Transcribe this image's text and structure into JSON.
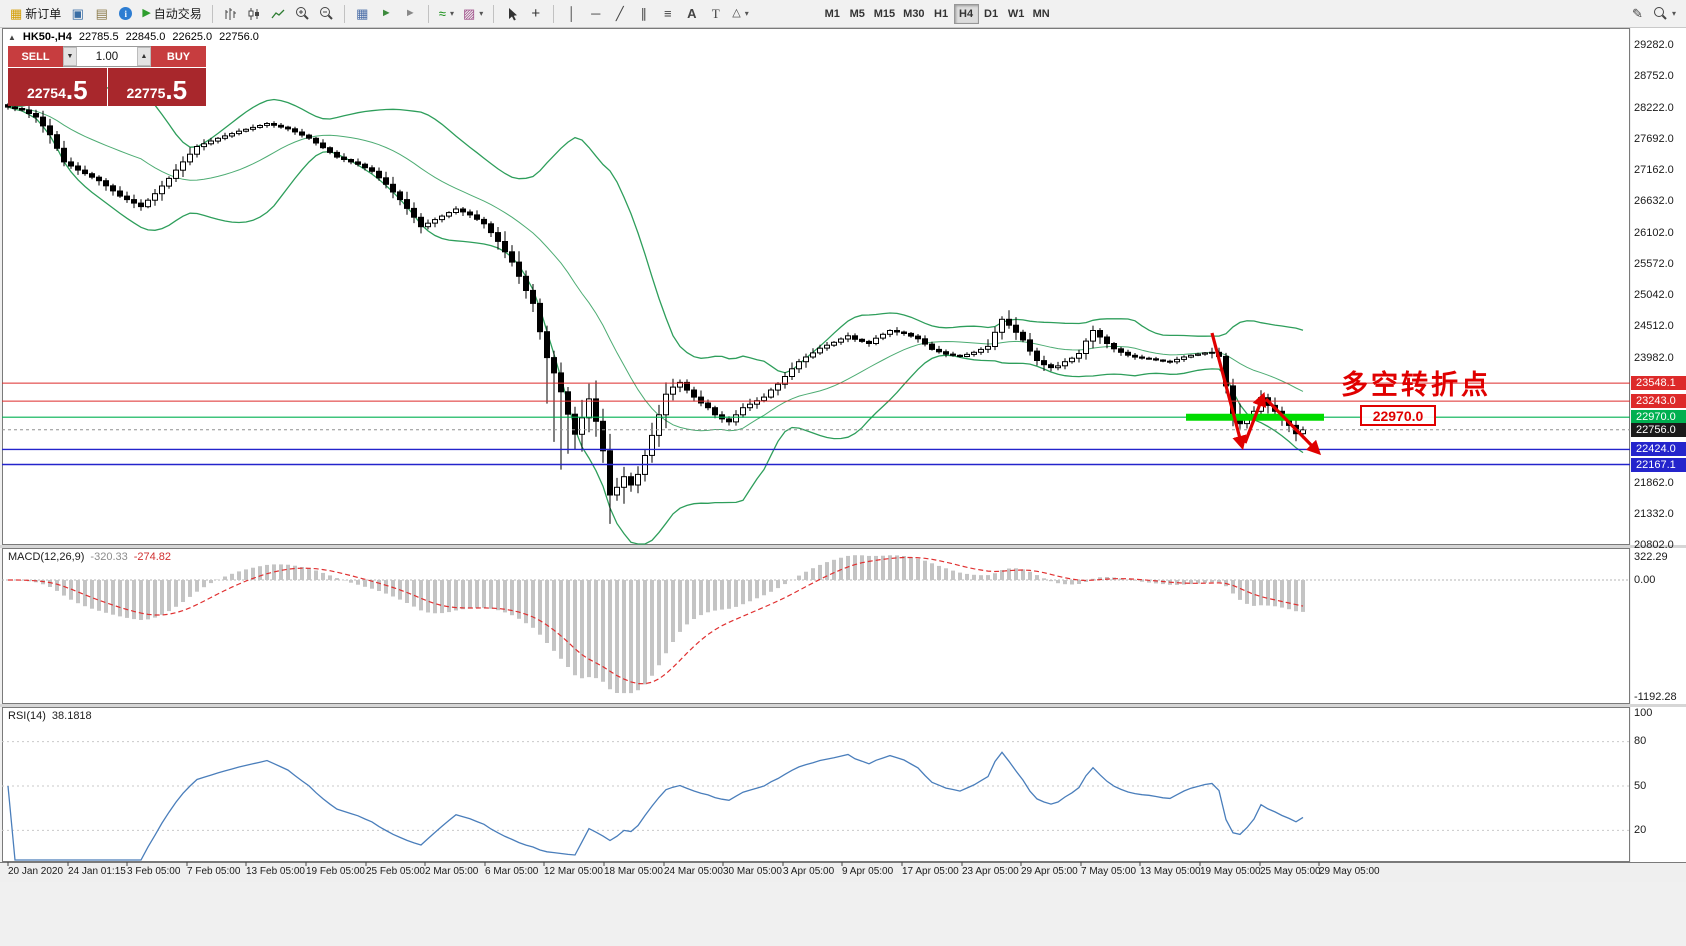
{
  "toolbar": {
    "new_order_label": "新订单",
    "autotrading_label": "自动交易",
    "timeframes": [
      "M1",
      "M5",
      "M15",
      "M30",
      "H1",
      "H4",
      "D1",
      "W1",
      "MN"
    ],
    "active_timeframe": "H4"
  },
  "quote_bar": {
    "symbol": "HK50-,H4",
    "open": "22785.5",
    "high": "22845.0",
    "low": "22625.0",
    "close": "22756.0"
  },
  "trade_panel": {
    "sell_label": "SELL",
    "buy_label": "BUY",
    "lot": "1.00",
    "sell_price": "22754",
    "sell_fraction": ".5",
    "buy_price": "22775",
    "buy_fraction": ".5"
  },
  "price_scale": {
    "labels": [
      "29282.0",
      "28752.0",
      "28222.0",
      "27692.0",
      "27162.0",
      "26632.0",
      "26102.0",
      "25572.0",
      "25042.0",
      "24512.0",
      "23982.0",
      "21862.0",
      "21332.0",
      "20802.0"
    ],
    "tags": [
      {
        "text": "23548.1",
        "color": "#dd2a2a",
        "kind": "resistance"
      },
      {
        "text": "23243.0",
        "color": "#dd2a2a",
        "kind": "resistance"
      },
      {
        "text": "22970.0",
        "color": "#00b050",
        "kind": "pivot"
      },
      {
        "text": "22756.0",
        "color": "#1a1a1a",
        "kind": "current-price"
      },
      {
        "text": "22424.0",
        "color": "#2424cc",
        "kind": "support"
      },
      {
        "text": "22167.1",
        "color": "#2424cc",
        "kind": "support"
      }
    ]
  },
  "annotations": {
    "turning_point_text": "多空转折点",
    "level_label": "22970.0"
  },
  "macd_panel": {
    "name": "MACD(12,26,9)",
    "main_value": "-320.33",
    "signal_value": "-274.82",
    "scale": [
      "322.29",
      "0.00",
      "-1192.28"
    ]
  },
  "rsi_panel": {
    "name": "RSI(14)",
    "value": "38.1818",
    "scale": [
      "100",
      "80",
      "50",
      "20"
    ]
  },
  "time_axis": {
    "labels": [
      "20 Jan 2020",
      "24 Jan 01:15",
      "3 Feb 05:00",
      "7 Feb 05:00",
      "13 Feb 05:00",
      "19 Feb 05:00",
      "25 Feb 05:00",
      "2 Mar 05:00",
      "6 Mar 05:00",
      "12 Mar 05:00",
      "18 Mar 05:00",
      "24 Mar 05:00",
      "30 Mar 05:00",
      "3 Apr 05:00",
      "9 Apr 05:00",
      "17 Apr 05:00",
      "23 Apr 05:00",
      "29 Apr 05:00",
      "7 May 05:00",
      "13 May 05:00",
      "19 May 05:00",
      "25 May 05:00",
      "29 May 05:00"
    ]
  },
  "chart_data": {
    "type": "candlestick",
    "symbol": "HK50-",
    "timeframe": "H4",
    "title": "HK50- H4 candlestick chart with Bollinger Bands, MACD(12,26,9) and RSI(14)",
    "price_range": [
      20802,
      29282
    ],
    "bars_count": 186,
    "ohlc_current": {
      "open": 22785.5,
      "high": 22845.0,
      "low": 22625.0,
      "close": 22756.0
    },
    "bid": 22754.5,
    "ask": 22775.5,
    "levels": [
      {
        "price": 23548.1,
        "color": "#dd2a2a",
        "width": 1
      },
      {
        "price": 23243.0,
        "color": "#dd2a2a",
        "width": 1
      },
      {
        "price": 22970.0,
        "color": "#00b050",
        "width": 1.2
      },
      {
        "price": 22424.0,
        "color": "#2424cc",
        "width": 1.4
      },
      {
        "price": 22167.1,
        "color": "#2424cc",
        "width": 1.4
      }
    ],
    "current_price": 22756.0,
    "highlight_segment": {
      "price": 22970.0,
      "color": "#00dc00"
    },
    "close_anchors": [
      [
        0,
        28230
      ],
      [
        2,
        28180
      ],
      [
        4,
        28060
      ],
      [
        6,
        27760
      ],
      [
        8,
        27300
      ],
      [
        10,
        27160
      ],
      [
        13,
        26980
      ],
      [
        16,
        26720
      ],
      [
        19,
        26540
      ],
      [
        21,
        26760
      ],
      [
        23,
        27020
      ],
      [
        25,
        27300
      ],
      [
        27,
        27560
      ],
      [
        30,
        27700
      ],
      [
        33,
        27820
      ],
      [
        37,
        27950
      ],
      [
        40,
        27860
      ],
      [
        43,
        27700
      ],
      [
        45,
        27540
      ],
      [
        47,
        27380
      ],
      [
        50,
        27260
      ],
      [
        52,
        27140
      ],
      [
        54,
        26920
      ],
      [
        56,
        26660
      ],
      [
        58,
        26360
      ],
      [
        59,
        26200
      ],
      [
        61,
        26320
      ],
      [
        64,
        26500
      ],
      [
        66,
        26400
      ],
      [
        68,
        26250
      ],
      [
        70,
        25950
      ],
      [
        72,
        25600
      ],
      [
        74,
        25120
      ],
      [
        75,
        24900
      ],
      [
        76,
        24420
      ],
      [
        77,
        23980
      ],
      [
        78,
        23720
      ],
      [
        79,
        23400
      ],
      [
        80,
        23020
      ],
      [
        81,
        22680
      ],
      [
        82,
        22960
      ],
      [
        83,
        23280
      ],
      [
        84,
        22900
      ],
      [
        85,
        22400
      ],
      [
        86,
        21650
      ],
      [
        87,
        21780
      ],
      [
        88,
        21960
      ],
      [
        89,
        21820
      ],
      [
        90,
        22000
      ],
      [
        91,
        22320
      ],
      [
        92,
        22660
      ],
      [
        93,
        23010
      ],
      [
        94,
        23360
      ],
      [
        95,
        23480
      ],
      [
        96,
        23560
      ],
      [
        97,
        23430
      ],
      [
        98,
        23310
      ],
      [
        99,
        23210
      ],
      [
        100,
        23130
      ],
      [
        101,
        23010
      ],
      [
        102,
        22940
      ],
      [
        103,
        22890
      ],
      [
        104,
        23010
      ],
      [
        105,
        23130
      ],
      [
        106,
        23190
      ],
      [
        107,
        23250
      ],
      [
        108,
        23310
      ],
      [
        109,
        23430
      ],
      [
        110,
        23530
      ],
      [
        111,
        23660
      ],
      [
        112,
        23790
      ],
      [
        113,
        23910
      ],
      [
        114,
        23990
      ],
      [
        115,
        24060
      ],
      [
        116,
        24140
      ],
      [
        118,
        24240
      ],
      [
        120,
        24350
      ],
      [
        121,
        24290
      ],
      [
        123,
        24220
      ],
      [
        124,
        24310
      ],
      [
        126,
        24440
      ],
      [
        128,
        24390
      ],
      [
        130,
        24300
      ],
      [
        131,
        24210
      ],
      [
        132,
        24120
      ],
      [
        134,
        24040
      ],
      [
        136,
        24000
      ],
      [
        138,
        24070
      ],
      [
        140,
        24170
      ],
      [
        141,
        24410
      ],
      [
        142,
        24630
      ],
      [
        143,
        24530
      ],
      [
        144,
        24410
      ],
      [
        145,
        24280
      ],
      [
        146,
        24090
      ],
      [
        147,
        23930
      ],
      [
        148,
        23860
      ],
      [
        149,
        23810
      ],
      [
        150,
        23840
      ],
      [
        151,
        23910
      ],
      [
        152,
        23970
      ],
      [
        153,
        24050
      ],
      [
        154,
        24260
      ],
      [
        155,
        24440
      ],
      [
        156,
        24330
      ],
      [
        157,
        24220
      ],
      [
        158,
        24130
      ],
      [
        159,
        24070
      ],
      [
        160,
        24020
      ],
      [
        161,
        23990
      ],
      [
        162,
        23970
      ],
      [
        163,
        23960
      ],
      [
        164,
        23940
      ],
      [
        165,
        23920
      ],
      [
        166,
        23910
      ],
      [
        167,
        23950
      ],
      [
        168,
        23990
      ],
      [
        169,
        24020
      ],
      [
        170,
        24040
      ],
      [
        171,
        24060
      ],
      [
        172,
        24070
      ],
      [
        173,
        24000
      ],
      [
        174,
        23500
      ],
      [
        175,
        22960
      ],
      [
        176,
        22860
      ],
      [
        177,
        22950
      ],
      [
        178,
        23070
      ],
      [
        179,
        23300
      ],
      [
        180,
        23170
      ],
      [
        181,
        23070
      ],
      [
        182,
        22940
      ],
      [
        183,
        22830
      ],
      [
        184,
        22690
      ],
      [
        185,
        22756
      ]
    ],
    "wick_overrides": {
      "77": {
        "low": 23200
      },
      "78": {
        "low": 22550
      },
      "79": {
        "low": 22080
      },
      "80": {
        "low": 22350
      },
      "86": {
        "low": 21160
      },
      "88": {
        "low": 21500
      },
      "142": {
        "high": 24680
      },
      "174": {
        "high": 24060
      },
      "184": {
        "low": 22560
      }
    },
    "trend_arrows": [
      [
        1212,
        333,
        1242,
        446
      ],
      [
        1245,
        443,
        1263,
        396
      ],
      [
        1266,
        399,
        1318,
        452
      ]
    ],
    "indicators": [
      "Bollinger(20,2)",
      "MACD(12,26,9)",
      "RSI(14)"
    ],
    "macd": {
      "main": -320.33,
      "signal": -274.82,
      "scale_max": 322.29,
      "scale_min": -1192.28
    },
    "rsi": {
      "period": 14,
      "value": 38.1818
    }
  },
  "colors": {
    "band_green": "#2e9e5b",
    "rsi_blue": "#4a7ebb",
    "macd_hist": "#c4c4c4",
    "macd_signal": "#e03030",
    "arrow_red": "#e00000",
    "trade_red": "#c73d3f",
    "trade_dark_red": "#a8272c"
  }
}
